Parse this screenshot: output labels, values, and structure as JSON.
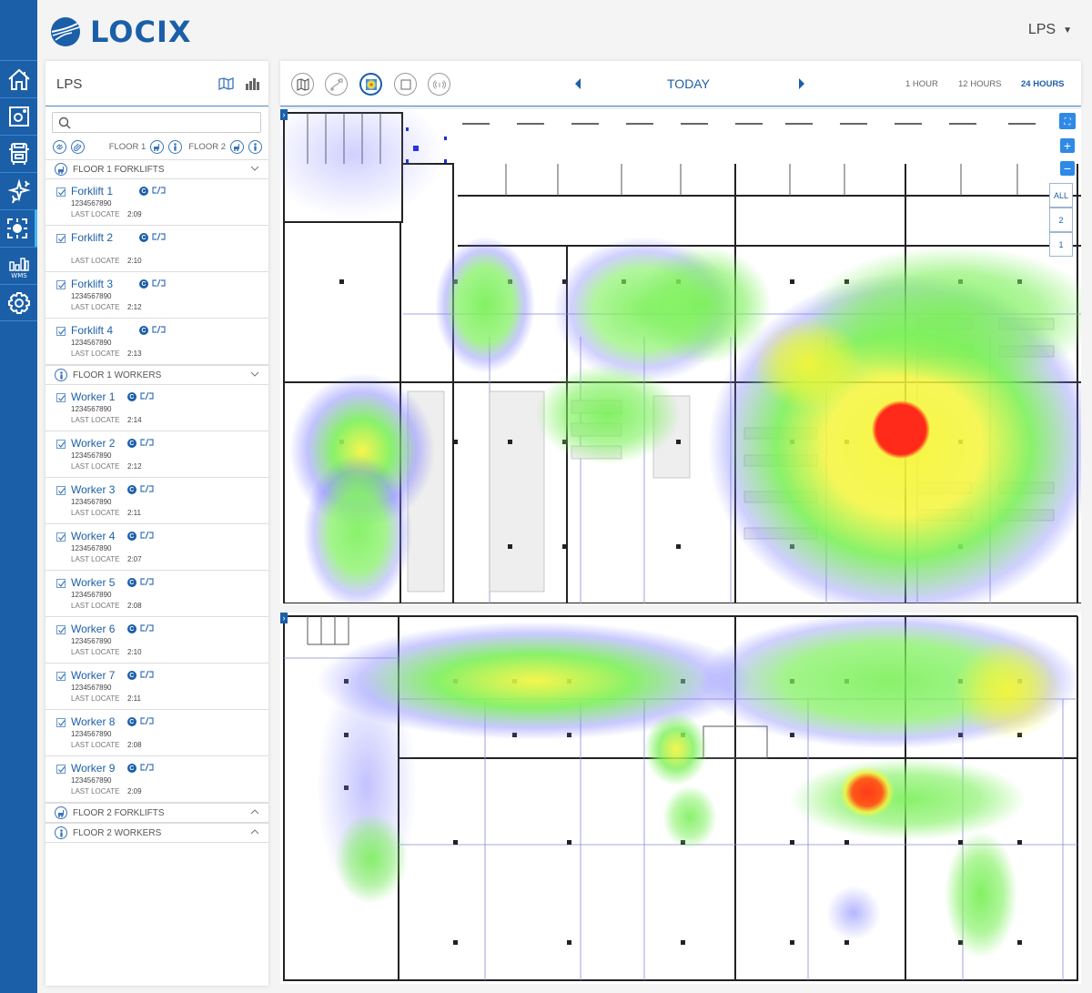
{
  "app": {
    "brand": "LOCIX",
    "user_menu_label": "LPS"
  },
  "rail": [
    {
      "name": "home",
      "icon": "home-icon"
    },
    {
      "name": "camera",
      "icon": "camera-icon"
    },
    {
      "name": "truck",
      "icon": "truck-icon"
    },
    {
      "name": "sparkle",
      "icon": "sparkle-icon"
    },
    {
      "name": "lps",
      "icon": "locate-icon",
      "active": true
    },
    {
      "name": "wms",
      "icon": "wms-chart-icon",
      "label": "WMS"
    },
    {
      "name": "settings",
      "icon": "gear-icon"
    }
  ],
  "panel": {
    "title": "LPS",
    "search": {
      "placeholder": "",
      "value": ""
    },
    "filters": {
      "floor1": "FLOOR 1",
      "floor2": "FLOOR 2"
    },
    "sections": [
      {
        "label": "FLOOR 1 FORKLIFTS",
        "icon": "forklift-icon",
        "expanded": true,
        "items": [
          {
            "name": "Forklift 1",
            "serial": "1234567890",
            "last_locate_label": "LAST LOCATE",
            "time": "2:09"
          },
          {
            "name": "Forklift 2",
            "serial": "",
            "last_locate_label": "LAST LOCATE",
            "time": "2:10"
          },
          {
            "name": "Forklift 3",
            "serial": "1234567890",
            "last_locate_label": "LAST LOCATE",
            "time": "2:12"
          },
          {
            "name": "Forklift 4",
            "serial": "1234567890",
            "last_locate_label": "LAST LOCATE",
            "time": "2:13"
          }
        ]
      },
      {
        "label": "FLOOR 1 WORKERS",
        "icon": "worker-icon",
        "expanded": true,
        "items": [
          {
            "name": "Worker 1",
            "serial": "1234567890",
            "last_locate_label": "LAST LOCATE",
            "time": "2:14"
          },
          {
            "name": "Worker 2",
            "serial": "1234567890",
            "last_locate_label": "LAST LOCATE",
            "time": "2:12"
          },
          {
            "name": "Worker 3",
            "serial": "1234567890",
            "last_locate_label": "LAST LOCATE",
            "time": "2:11"
          },
          {
            "name": "Worker 4",
            "serial": "1234567890",
            "last_locate_label": "LAST LOCATE",
            "time": "2:07"
          },
          {
            "name": "Worker 5",
            "serial": "1234567890",
            "last_locate_label": "LAST LOCATE",
            "time": "2:08"
          },
          {
            "name": "Worker 6",
            "serial": "1234567890",
            "last_locate_label": "LAST LOCATE",
            "time": "2:10"
          },
          {
            "name": "Worker 7",
            "serial": "1234567890",
            "last_locate_label": "LAST LOCATE",
            "time": "2:11"
          },
          {
            "name": "Worker 8",
            "serial": "1234567890",
            "last_locate_label": "LAST LOCATE",
            "time": "2:08"
          },
          {
            "name": "Worker 9",
            "serial": "1234567890",
            "last_locate_label": "LAST LOCATE",
            "time": "2:09"
          }
        ]
      },
      {
        "label": "FLOOR 2 FORKLIFTS",
        "icon": "forklift-icon",
        "expanded": false,
        "items": []
      },
      {
        "label": "FLOOR 2 WORKERS",
        "icon": "worker-icon",
        "expanded": false,
        "items": []
      }
    ]
  },
  "toolbar": {
    "view_buttons": [
      {
        "name": "map-view",
        "icon": "map-icon"
      },
      {
        "name": "path-view",
        "icon": "path-icon"
      },
      {
        "name": "heatmap-view",
        "icon": "heatmap-icon",
        "active": true
      },
      {
        "name": "zone-view",
        "icon": "zone-icon"
      },
      {
        "name": "beacon-view",
        "icon": "beacon-icon"
      }
    ],
    "date_label": "TODAY",
    "ranges": [
      {
        "label": "1 HOUR",
        "active": false
      },
      {
        "label": "12 HOURS",
        "active": false
      },
      {
        "label": "24 HOURS",
        "active": true
      }
    ]
  },
  "map": {
    "zoom_in": "+",
    "zoom_out": "−",
    "floor_options": [
      "ALL",
      "2",
      "1"
    ],
    "heat_colors": {
      "low": "#7b7bff",
      "mid": "#7cf05a",
      "high": "#f5f53a",
      "peak": "#ff2a1a"
    }
  }
}
